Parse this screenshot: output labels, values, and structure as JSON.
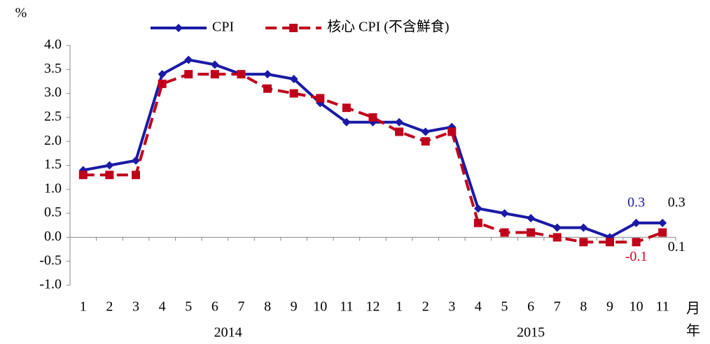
{
  "chart_data": {
    "type": "line",
    "y_label": "%",
    "x_label": "月",
    "x_label2": "年",
    "categories": [
      "1",
      "2",
      "3",
      "4",
      "5",
      "6",
      "7",
      "8",
      "9",
      "10",
      "11",
      "12",
      "1",
      "2",
      "3",
      "4",
      "5",
      "6",
      "7",
      "8",
      "9",
      "10",
      "11"
    ],
    "year_groups": [
      {
        "name": "2014",
        "count": 12
      },
      {
        "name": "2015",
        "count": 11
      }
    ],
    "series": [
      {
        "name": "CPI",
        "color": "#1a1aa6",
        "marker": "diamond",
        "dash": false,
        "values": [
          1.4,
          1.5,
          1.6,
          3.4,
          3.7,
          3.6,
          3.4,
          3.4,
          3.3,
          2.8,
          2.4,
          2.4,
          2.4,
          2.2,
          2.3,
          0.6,
          0.5,
          0.4,
          0.2,
          0.2,
          0.0,
          0.3,
          0.3
        ],
        "value_labels": [
          null,
          null,
          null,
          null,
          null,
          null,
          null,
          null,
          null,
          null,
          null,
          null,
          null,
          null,
          null,
          null,
          null,
          null,
          null,
          null,
          null,
          "0.3",
          "0.3"
        ],
        "value_label_colors": [
          null,
          null,
          null,
          null,
          null,
          null,
          null,
          null,
          null,
          null,
          null,
          null,
          null,
          null,
          null,
          null,
          null,
          null,
          null,
          null,
          null,
          "#1a1aa6",
          "#000000"
        ]
      },
      {
        "name": "核心 CPI (不含鮮食)",
        "color": "#c0001a",
        "marker": "square",
        "dash": true,
        "values": [
          1.3,
          1.3,
          1.3,
          3.2,
          3.4,
          3.4,
          3.4,
          3.1,
          3.0,
          2.9,
          2.7,
          2.5,
          2.2,
          2.0,
          2.2,
          0.3,
          0.1,
          0.1,
          0.0,
          -0.1,
          -0.1,
          -0.1,
          0.1
        ],
        "value_labels": [
          null,
          null,
          null,
          null,
          null,
          null,
          null,
          null,
          null,
          null,
          null,
          null,
          null,
          null,
          null,
          null,
          null,
          null,
          null,
          null,
          null,
          "-0.1",
          "0.1"
        ],
        "value_label_colors": [
          null,
          null,
          null,
          null,
          null,
          null,
          null,
          null,
          null,
          null,
          null,
          null,
          null,
          null,
          null,
          null,
          null,
          null,
          null,
          null,
          null,
          "#e0001a",
          "#000000"
        ]
      }
    ],
    "ylim": [
      -1.0,
      4.0
    ],
    "yticks": [
      {
        "value": 4.0,
        "label": "4.0"
      },
      {
        "value": 3.5,
        "label": "3.5"
      },
      {
        "value": 3.0,
        "label": "3.0"
      },
      {
        "value": 2.5,
        "label": "2.5"
      },
      {
        "value": 2.0,
        "label": "2.0"
      },
      {
        "value": 1.5,
        "label": "1.5"
      },
      {
        "value": 1.0,
        "label": "1.0"
      },
      {
        "value": 0.5,
        "label": "0.5"
      },
      {
        "value": 0.0,
        "label": "0.0"
      },
      {
        "value": -0.5,
        "label": "-0.5"
      },
      {
        "value": -1.0,
        "label": "-1.0"
      }
    ],
    "legend": "top"
  }
}
